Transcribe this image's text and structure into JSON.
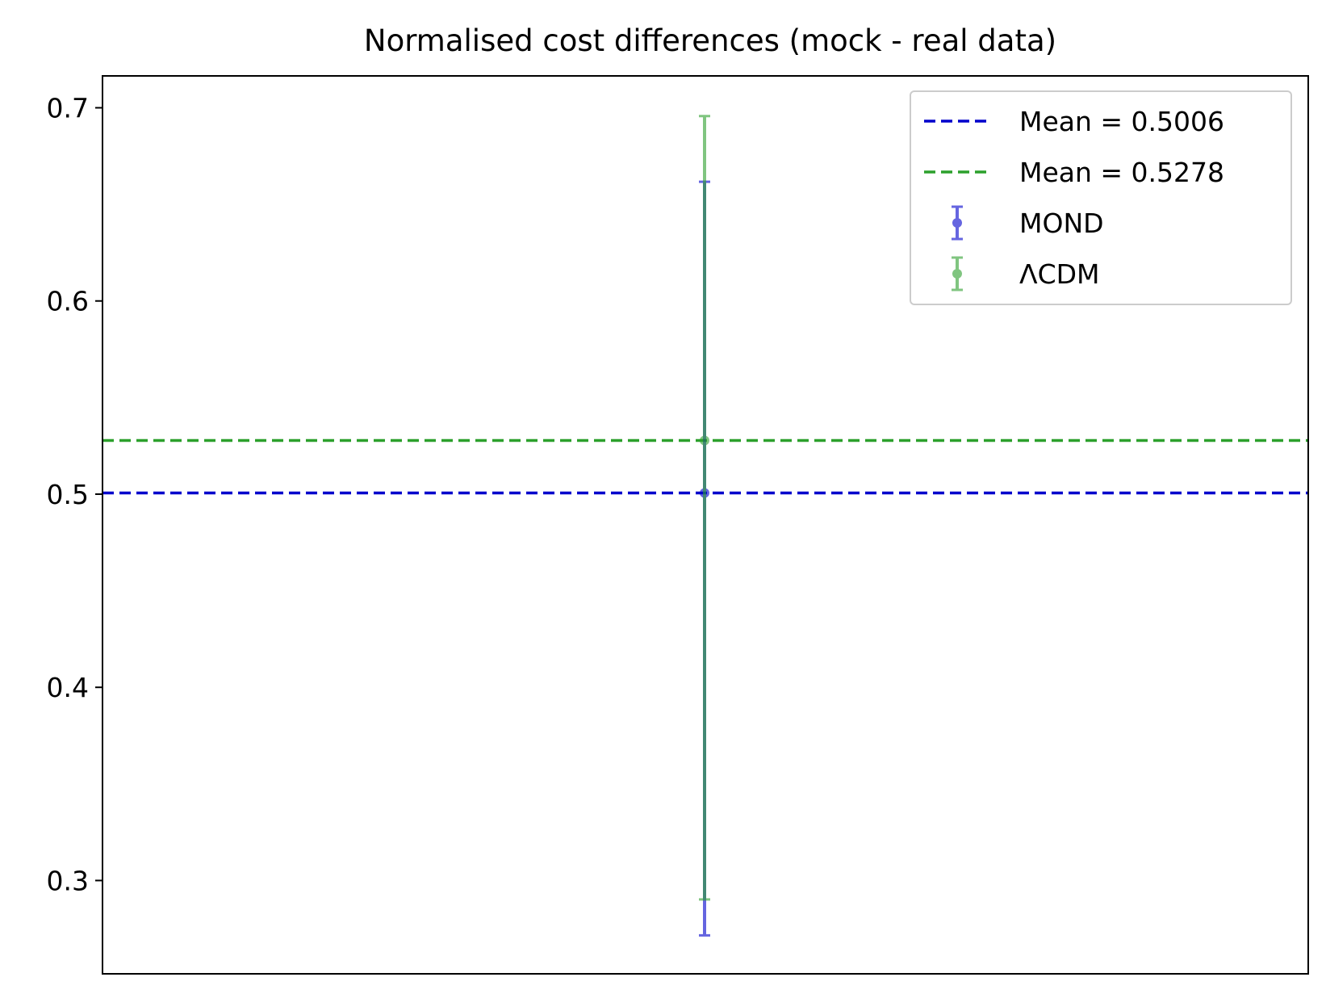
{
  "chart_data": {
    "type": "scatter",
    "title": "Normalised cost differences (mock - real data)",
    "xlabel": "",
    "ylabel": "",
    "ylim": [
      0.2517,
      0.7165
    ],
    "x_ticks_visible": false,
    "y_ticks": [
      0.3,
      0.4,
      0.5,
      0.6,
      0.7
    ],
    "y_tick_labels": [
      "0.3",
      "0.4",
      "0.5",
      "0.6",
      "0.7"
    ],
    "grid": false,
    "legend_position": "top-right",
    "series": [
      {
        "name": "MOND",
        "color": "#0000cc",
        "marker": "circle",
        "y": 0.5006,
        "yerr_lower": 0.2716,
        "yerr_upper": 0.6617
      },
      {
        "name": "ΛCDM",
        "color": "#2ca02c",
        "marker": "circle",
        "y": 0.5278,
        "yerr_lower": 0.2902,
        "yerr_upper": 0.6957
      }
    ],
    "mean_lines": [
      {
        "label": "Mean = 0.5006",
        "value": 0.5006,
        "color": "#0000cc",
        "style": "dashed"
      },
      {
        "label": "Mean = 0.5278",
        "value": 0.5278,
        "color": "#2ca02c",
        "style": "dashed"
      }
    ]
  }
}
